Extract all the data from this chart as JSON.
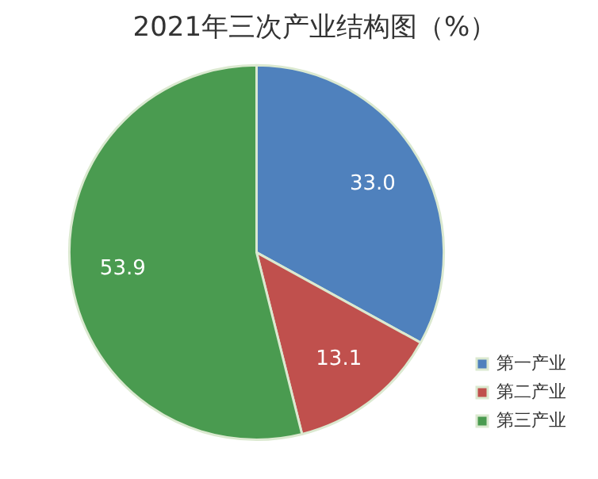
{
  "chart_data": {
    "type": "pie",
    "title": "2021年三次产业结构图（%）",
    "categories": [
      "第一产业",
      "第二产业",
      "第三产业"
    ],
    "values": [
      33.0,
      13.1,
      53.9
    ],
    "value_labels": [
      "33.0",
      "13.1",
      "53.9"
    ],
    "colors": [
      "#4f81bd",
      "#c0504d",
      "#4a9b50"
    ],
    "legend": "bottom right"
  }
}
